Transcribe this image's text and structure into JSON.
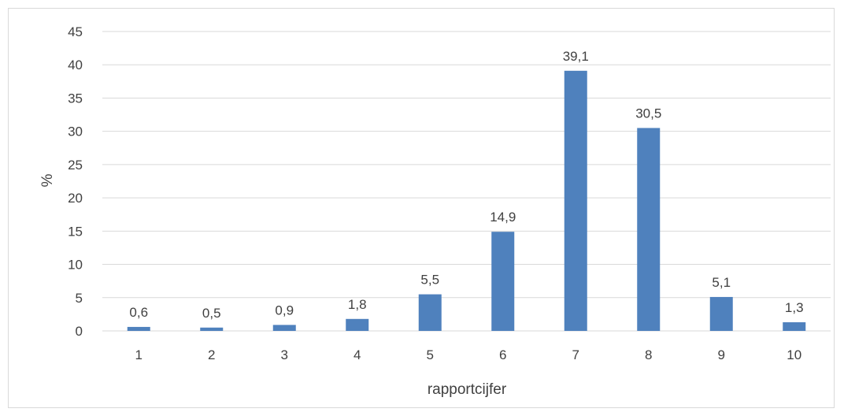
{
  "chart_data": {
    "type": "bar",
    "categories": [
      "1",
      "2",
      "3",
      "4",
      "5",
      "6",
      "7",
      "8",
      "9",
      "10"
    ],
    "values": [
      0.6,
      0.5,
      0.9,
      1.8,
      5.5,
      14.9,
      39.1,
      30.5,
      5.1,
      1.3
    ],
    "data_labels": [
      "0,6",
      "0,5",
      "0,9",
      "1,8",
      "5,5",
      "14,9",
      "39,1",
      "30,5",
      "5,1",
      "1,3"
    ],
    "title": "",
    "xlabel": "rapportcijfer",
    "ylabel": "%",
    "ylim": [
      0,
      45
    ],
    "yticks": [
      0,
      5,
      10,
      15,
      20,
      25,
      30,
      35,
      40,
      45
    ],
    "grid": true,
    "legend": "none",
    "colors": {
      "bar": "#4f81bd",
      "grid": "#d9d9d9",
      "text": "#404040"
    }
  }
}
